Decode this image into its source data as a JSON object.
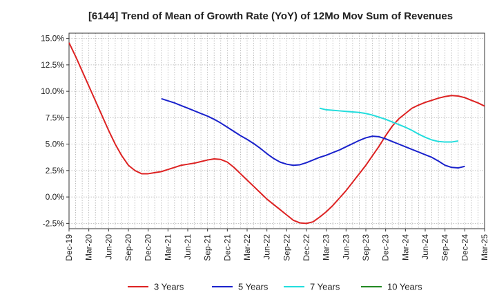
{
  "chart_data": {
    "type": "line",
    "title": "[6144]  Trend of Mean of Growth Rate (YoY) of 12Mo Mov Sum of Revenues",
    "xlabel": "",
    "ylabel": "",
    "ylim": [
      -3.0,
      15.5
    ],
    "yticks": [
      15.0,
      12.5,
      10.0,
      7.5,
      5.0,
      2.5,
      0.0,
      -2.5
    ],
    "ytick_labels": [
      "15.0%",
      "12.5%",
      "10.0%",
      "7.5%",
      "5.0%",
      "2.5%",
      "0.0%",
      "-2.5%"
    ],
    "x_start": "2019-12",
    "x_end": "2025-03",
    "xtick_labels": [
      "Dec-19",
      "Mar-20",
      "Jun-20",
      "Sep-20",
      "Dec-20",
      "Mar-21",
      "Jun-21",
      "Sep-21",
      "Dec-21",
      "Mar-22",
      "Jun-22",
      "Sep-22",
      "Dec-22",
      "Mar-23",
      "Jun-23",
      "Sep-23",
      "Dec-23",
      "Mar-24",
      "Jun-24",
      "Sep-24",
      "Dec-24",
      "Mar-25"
    ],
    "grid": true,
    "legend_position": "bottom",
    "series": [
      {
        "name": "3 Years",
        "color": "#dd2222",
        "start": "2019-12",
        "values": [
          14.6,
          13.3,
          11.9,
          10.5,
          9.1,
          7.7,
          6.3,
          5.0,
          3.9,
          3.0,
          2.5,
          2.2,
          2.2,
          2.3,
          2.4,
          2.6,
          2.8,
          3.0,
          3.1,
          3.2,
          3.35,
          3.5,
          3.6,
          3.55,
          3.3,
          2.8,
          2.2,
          1.6,
          1.0,
          0.4,
          -0.2,
          -0.7,
          -1.2,
          -1.7,
          -2.2,
          -2.45,
          -2.5,
          -2.35,
          -1.9,
          -1.4,
          -0.8,
          -0.1,
          0.6,
          1.4,
          2.2,
          3.0,
          3.9,
          4.8,
          5.8,
          6.7,
          7.4,
          7.9,
          8.4,
          8.7,
          8.95,
          9.15,
          9.35,
          9.5,
          9.6,
          9.55,
          9.4,
          9.15,
          8.9,
          8.6
        ]
      },
      {
        "name": "5 Years",
        "color": "#1a22cc",
        "start": "2021-02",
        "values": [
          9.3,
          9.1,
          8.9,
          8.65,
          8.4,
          8.15,
          7.9,
          7.65,
          7.35,
          7.0,
          6.6,
          6.2,
          5.8,
          5.45,
          5.05,
          4.6,
          4.1,
          3.65,
          3.3,
          3.1,
          3.0,
          3.05,
          3.25,
          3.5,
          3.75,
          3.95,
          4.2,
          4.45,
          4.75,
          5.05,
          5.35,
          5.6,
          5.75,
          5.7,
          5.5,
          5.25,
          5.0,
          4.75,
          4.5,
          4.25,
          4.0,
          3.75,
          3.4,
          3.0,
          2.8,
          2.75,
          2.9
        ]
      },
      {
        "name": "7 Years",
        "color": "#22dddd",
        "start": "2023-02",
        "values": [
          8.4,
          8.25,
          8.2,
          8.15,
          8.1,
          8.05,
          8.0,
          7.9,
          7.75,
          7.55,
          7.35,
          7.1,
          6.85,
          6.6,
          6.3,
          5.95,
          5.65,
          5.4,
          5.25,
          5.2,
          5.2,
          5.3
        ]
      },
      {
        "name": "10 Years",
        "color": "#228822",
        "start": "2024-12",
        "values": []
      }
    ]
  }
}
